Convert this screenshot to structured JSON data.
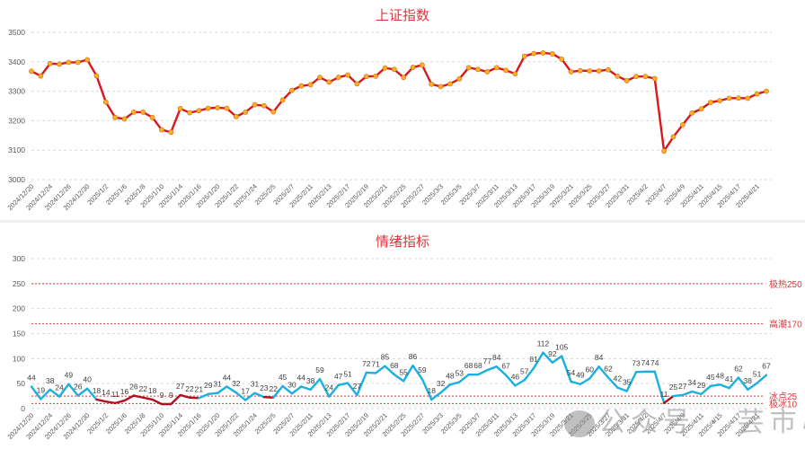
{
  "chart_data": [
    {
      "type": "line",
      "title": "上证指数",
      "xlabel": "",
      "ylabel": "",
      "ylim": [
        3000,
        3500
      ],
      "yticks": [
        3000,
        3100,
        3200,
        3300,
        3400,
        3500
      ],
      "grid": true,
      "legend": null,
      "line_color": "#d7191c",
      "marker_color": "#f5b320",
      "x_tick_labels": [
        "2024/12/20",
        "2024/12/24",
        "2024/12/26",
        "2024/12/30",
        "2025/1/2",
        "2025/1/6",
        "2025/1/8",
        "2025/1/10",
        "2025/1/14",
        "2025/1/16",
        "2025/1/20",
        "2025/1/22",
        "2025/1/24",
        "2025/2/5",
        "2025/2/7",
        "2025/2/11",
        "2025/2/13",
        "2025/2/17",
        "2025/2/19",
        "2025/2/21",
        "2025/2/25",
        "2025/2/27",
        "2025/3/3",
        "2025/3/5",
        "2025/3/7",
        "2025/3/11",
        "2025/3/13",
        "2025/3/17",
        "2025/3/19",
        "2025/3/21",
        "2025/3/25",
        "2025/3/27",
        "2025/3/31",
        "2025/4/2",
        "2025/4/7",
        "2025/4/9",
        "2025/4/11",
        "2025/4/15",
        "2025/4/17",
        "2025/4/21"
      ],
      "values": [
        3368,
        3352,
        3394,
        3392,
        3398,
        3398,
        3407,
        3352,
        3263,
        3211,
        3206,
        3229,
        3229,
        3211,
        3169,
        3161,
        3241,
        3227,
        3234,
        3242,
        3244,
        3242,
        3214,
        3229,
        3254,
        3251,
        3230,
        3270,
        3303,
        3318,
        3322,
        3347,
        3331,
        3347,
        3355,
        3325,
        3350,
        3351,
        3379,
        3374,
        3347,
        3381,
        3389,
        3324,
        3316,
        3325,
        3342,
        3380,
        3374,
        3366,
        3380,
        3371,
        3359,
        3419,
        3428,
        3430,
        3427,
        3409,
        3366,
        3370,
        3369,
        3369,
        3373,
        3351,
        3336,
        3350,
        3350,
        3343,
        3097,
        3145,
        3186,
        3226,
        3240,
        3262,
        3268,
        3276,
        3277,
        3276,
        3291,
        3300
      ]
    },
    {
      "type": "line",
      "title": "情绪指标",
      "xlabel": "",
      "ylabel": "",
      "ylim": [
        0,
        300
      ],
      "yticks": [
        0,
        50,
        100,
        150,
        200,
        250,
        300
      ],
      "grid": true,
      "legend": null,
      "line_color_above": "#1ab0e0",
      "line_color_below": "#b01020",
      "x_tick_labels": [
        "2024/12/20",
        "2024/12/24",
        "2024/12/26",
        "2024/12/30",
        "2025/1/2",
        "2025/1/6",
        "2025/1/8",
        "2025/1/10",
        "2025/1/14",
        "2025/1/16",
        "2025/1/20",
        "2025/1/22",
        "2025/1/24",
        "2025/2/5",
        "2025/2/7",
        "2025/2/11",
        "2025/2/13",
        "2025/2/17",
        "2025/2/19",
        "2025/2/21",
        "2025/2/25",
        "2025/2/27",
        "2025/3/3",
        "2025/3/5",
        "2025/3/7",
        "2025/3/11",
        "2025/3/13",
        "2025/3/17",
        "2025/3/19",
        "2025/3/21",
        "2025/3/25",
        "2025/3/27",
        "2025/3/31",
        "2025/4/2",
        "2025/4/7",
        "2025/4/9",
        "2025/4/11",
        "2025/4/15",
        "2025/4/17",
        "2025/4/21"
      ],
      "values": [
        44,
        19,
        38,
        24,
        49,
        26,
        40,
        18,
        14,
        11,
        16,
        26,
        22,
        18,
        9,
        9,
        27,
        22,
        21,
        29,
        31,
        44,
        32,
        17,
        31,
        23,
        22,
        45,
        30,
        44,
        38,
        59,
        24,
        47,
        51,
        27,
        72,
        71,
        85,
        68,
        55,
        86,
        59,
        18,
        32,
        48,
        53,
        68,
        68,
        77,
        84,
        67,
        46,
        57,
        81,
        112,
        92,
        105,
        54,
        49,
        60,
        84,
        62,
        42,
        35,
        73,
        74,
        74,
        11,
        25,
        27,
        34,
        29,
        45,
        48,
        41,
        62,
        38,
        51,
        67
      ],
      "reference_lines": [
        {
          "label": "极热250",
          "value": 250
        },
        {
          "label": "高潮170",
          "value": 170
        },
        {
          "label": "冰点25",
          "value": 25
        },
        {
          "label": "极冰10",
          "value": 10
        }
      ],
      "reference_color": "#d9383a"
    }
  ],
  "watermark": "公众号 · 芸市心得"
}
